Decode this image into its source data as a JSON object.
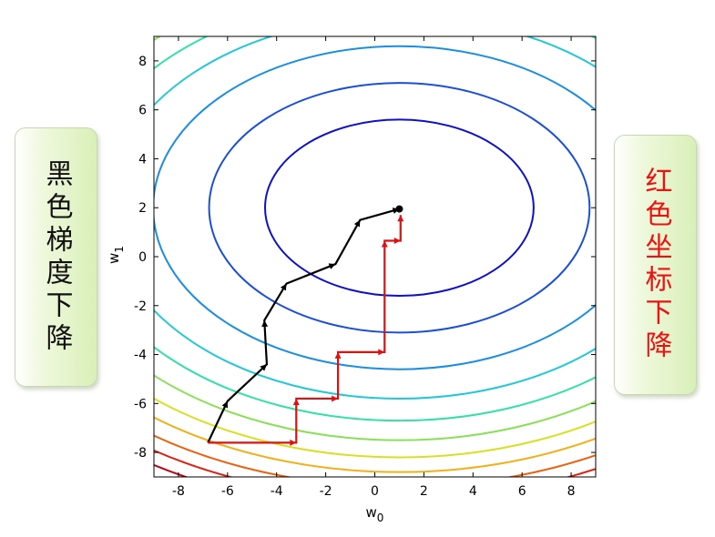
{
  "left_box": {
    "label": "黑色梯度下降",
    "color": "#111111"
  },
  "right_box": {
    "label": "红色坐标下降",
    "color": "#ee1111"
  },
  "chart_data": {
    "type": "line",
    "xlabel": "w0",
    "ylabel": "w1",
    "xlim": [
      -9,
      9
    ],
    "ylim": [
      -9,
      9
    ],
    "xticks": [
      -8,
      -6,
      -4,
      -2,
      0,
      2,
      4,
      6,
      8
    ],
    "yticks": [
      -8,
      -6,
      -4,
      -2,
      0,
      2,
      4,
      6,
      8
    ],
    "grid": false,
    "contours": {
      "center": [
        1,
        2
      ],
      "x_radius_ratio": 1.52,
      "levels": [
        {
          "ry": 3.6,
          "color": "#1010c8"
        },
        {
          "ry": 5.1,
          "color": "#1a4fd8"
        },
        {
          "ry": 6.6,
          "color": "#1a8fe0"
        },
        {
          "ry": 7.8,
          "color": "#22c8d8"
        },
        {
          "ry": 8.7,
          "color": "#33e0a8"
        },
        {
          "ry": 9.5,
          "color": "#88e055"
        },
        {
          "ry": 10.2,
          "color": "#d8e022"
        },
        {
          "ry": 10.8,
          "color": "#f0b018"
        },
        {
          "ry": 11.4,
          "color": "#ec6010"
        },
        {
          "ry": 11.9,
          "color": "#e02010"
        },
        {
          "ry": 12.4,
          "color": "#c00018"
        },
        {
          "ry": 12.9,
          "color": "#801018"
        }
      ]
    },
    "series": [
      {
        "color": "#000000",
        "points": [
          [
            -6.8,
            -7.6
          ],
          [
            -6.0,
            -5.9
          ],
          [
            -4.4,
            -4.4
          ],
          [
            -4.5,
            -2.6
          ],
          [
            -3.6,
            -1.1
          ],
          [
            -1.6,
            -0.3
          ],
          [
            -0.6,
            1.5
          ],
          [
            1.0,
            1.95
          ]
        ]
      },
      {
        "color": "#e01010",
        "points": [
          [
            -6.8,
            -7.6
          ],
          [
            -3.2,
            -7.6
          ],
          [
            -3.2,
            -5.8
          ],
          [
            -1.5,
            -5.8
          ],
          [
            -1.5,
            -3.9
          ],
          [
            0.4,
            -3.9
          ],
          [
            0.4,
            0.65
          ],
          [
            1.05,
            0.65
          ],
          [
            1.05,
            1.7
          ]
        ]
      }
    ],
    "optimum": {
      "point": [
        1.0,
        1.95
      ],
      "color": "#000000"
    }
  }
}
